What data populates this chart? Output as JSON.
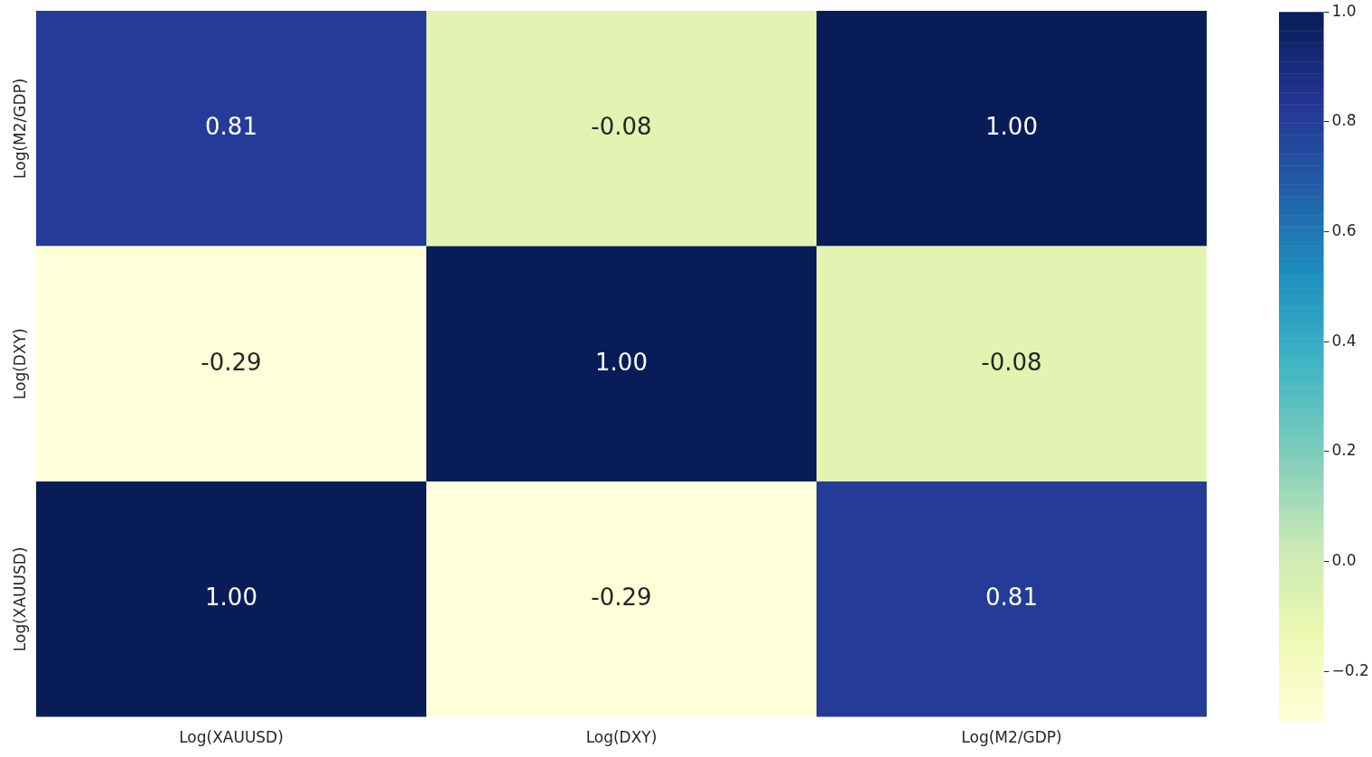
{
  "chart_data": {
    "type": "heatmap",
    "categories": [
      "Log(XAUUSD)",
      "Log(DXY)",
      "Log(M2/GDP)"
    ],
    "y_categories": [
      "Log(M2/GDP)",
      "Log(DXY)",
      "Log(XAUUSD)"
    ],
    "cells": [
      [
        0.81,
        -0.08,
        1.0
      ],
      [
        -0.29,
        1.0,
        -0.08
      ],
      [
        1.0,
        -0.29,
        0.81
      ]
    ],
    "cell_labels": [
      [
        "0.81",
        "-0.08",
        "1.00"
      ],
      [
        "-0.29",
        "1.00",
        "-0.08"
      ],
      [
        "1.00",
        "-0.29",
        "0.81"
      ]
    ],
    "clim": [
      -0.29,
      1.0
    ],
    "cticks": [
      {
        "value": -0.2,
        "label": "−0.2"
      },
      {
        "value": 0,
        "label": "0.0"
      },
      0.2,
      0.4,
      0.6,
      0.8,
      {
        "value": 1.0,
        "label": "1.0"
      }
    ]
  }
}
